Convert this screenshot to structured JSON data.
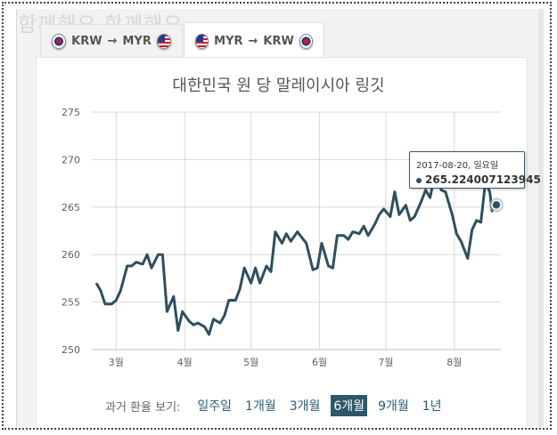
{
  "watermark": "함께해요 함께해요",
  "tabs": [
    {
      "from": "KRW",
      "to": "MYR",
      "arrow": "→"
    },
    {
      "from": "MYR",
      "to": "KRW",
      "arrow": "→"
    }
  ],
  "tooltip": {
    "date": "2017-08-20, 일요일",
    "value": "265.224007123945"
  },
  "period": {
    "label": "과거 환율 보기:",
    "options": [
      "일주일",
      "1개월",
      "3개월",
      "6개월",
      "9개월",
      "1년"
    ],
    "active_index": 3
  },
  "colors": {
    "line": "#2e4f5e",
    "grid": "#d8d8d8",
    "active": "#2e5869"
  },
  "chart_data": {
    "type": "line",
    "title": "대한민국 원 당 말레이시아 링깃",
    "xlabel": "",
    "ylabel": "",
    "ylim": [
      250,
      275
    ],
    "yticks": [
      250,
      255,
      260,
      265,
      270,
      275
    ],
    "xticks": [
      {
        "label": "3월",
        "month": 3
      },
      {
        "label": "4월",
        "month": 4
      },
      {
        "label": "5월",
        "month": 5
      },
      {
        "label": "6월",
        "month": 6
      },
      {
        "label": "7월",
        "month": 7
      },
      {
        "label": "8월",
        "month": 8
      }
    ],
    "x_range": [
      "2017-02-20",
      "2017-08-20"
    ],
    "highlight": {
      "date": "2017-08-20",
      "value": 265.224007123945
    },
    "series": [
      {
        "points": [
          [
            "2017-02-20",
            257.0
          ],
          [
            "2017-02-22",
            256.2
          ],
          [
            "2017-02-24",
            254.8
          ],
          [
            "2017-02-27",
            254.8
          ],
          [
            "2017-03-01",
            255.2
          ],
          [
            "2017-03-03",
            256.2
          ],
          [
            "2017-03-06",
            258.8
          ],
          [
            "2017-03-08",
            258.8
          ],
          [
            "2017-03-10",
            259.2
          ],
          [
            "2017-03-13",
            259.0
          ],
          [
            "2017-03-15",
            260.0
          ],
          [
            "2017-03-17",
            258.6
          ],
          [
            "2017-03-20",
            260.0
          ],
          [
            "2017-03-22",
            260.0
          ],
          [
            "2017-03-24",
            254.0
          ],
          [
            "2017-03-27",
            255.6
          ],
          [
            "2017-03-29",
            252.0
          ],
          [
            "2017-03-31",
            254.0
          ],
          [
            "2017-04-03",
            253.0
          ],
          [
            "2017-04-05",
            252.6
          ],
          [
            "2017-04-07",
            252.8
          ],
          [
            "2017-04-10",
            252.4
          ],
          [
            "2017-04-12",
            251.6
          ],
          [
            "2017-04-14",
            253.2
          ],
          [
            "2017-04-17",
            252.8
          ],
          [
            "2017-04-19",
            253.6
          ],
          [
            "2017-04-21",
            255.2
          ],
          [
            "2017-04-24",
            255.2
          ],
          [
            "2017-04-26",
            256.4
          ],
          [
            "2017-04-28",
            258.6
          ],
          [
            "2017-05-01",
            257.0
          ],
          [
            "2017-05-03",
            258.6
          ],
          [
            "2017-05-05",
            257.0
          ],
          [
            "2017-05-08",
            258.8
          ],
          [
            "2017-05-10",
            258.2
          ],
          [
            "2017-05-12",
            262.4
          ],
          [
            "2017-05-15",
            261.2
          ],
          [
            "2017-05-17",
            262.2
          ],
          [
            "2017-05-19",
            261.4
          ],
          [
            "2017-05-22",
            262.4
          ],
          [
            "2017-05-24",
            261.8
          ],
          [
            "2017-05-26",
            261.2
          ],
          [
            "2017-05-29",
            258.4
          ],
          [
            "2017-05-31",
            258.6
          ],
          [
            "2017-06-02",
            261.2
          ],
          [
            "2017-06-05",
            258.8
          ],
          [
            "2017-06-07",
            258.6
          ],
          [
            "2017-06-09",
            262.0
          ],
          [
            "2017-06-12",
            262.0
          ],
          [
            "2017-06-14",
            261.6
          ],
          [
            "2017-06-16",
            262.4
          ],
          [
            "2017-06-19",
            262.2
          ],
          [
            "2017-06-21",
            263.0
          ],
          [
            "2017-06-23",
            262.0
          ],
          [
            "2017-06-26",
            263.2
          ],
          [
            "2017-06-28",
            264.2
          ],
          [
            "2017-06-30",
            264.8
          ],
          [
            "2017-07-03",
            264.0
          ],
          [
            "2017-07-05",
            266.6
          ],
          [
            "2017-07-07",
            264.2
          ],
          [
            "2017-07-10",
            265.2
          ],
          [
            "2017-07-12",
            263.6
          ],
          [
            "2017-07-14",
            264.0
          ],
          [
            "2017-07-17",
            265.6
          ],
          [
            "2017-07-19",
            266.8
          ],
          [
            "2017-07-21",
            266.0
          ],
          [
            "2017-07-24",
            269.4
          ],
          [
            "2017-07-26",
            266.8
          ],
          [
            "2017-07-28",
            266.6
          ],
          [
            "2017-07-31",
            264.2
          ],
          [
            "2017-08-02",
            262.2
          ],
          [
            "2017-08-04",
            261.4
          ],
          [
            "2017-08-07",
            259.6
          ],
          [
            "2017-08-09",
            262.6
          ],
          [
            "2017-08-11",
            263.6
          ],
          [
            "2017-08-13",
            263.4
          ],
          [
            "2017-08-15",
            267.6
          ],
          [
            "2017-08-17",
            266.6
          ],
          [
            "2017-08-18",
            264.6
          ],
          [
            "2017-08-20",
            265.224007123945
          ]
        ]
      }
    ]
  }
}
